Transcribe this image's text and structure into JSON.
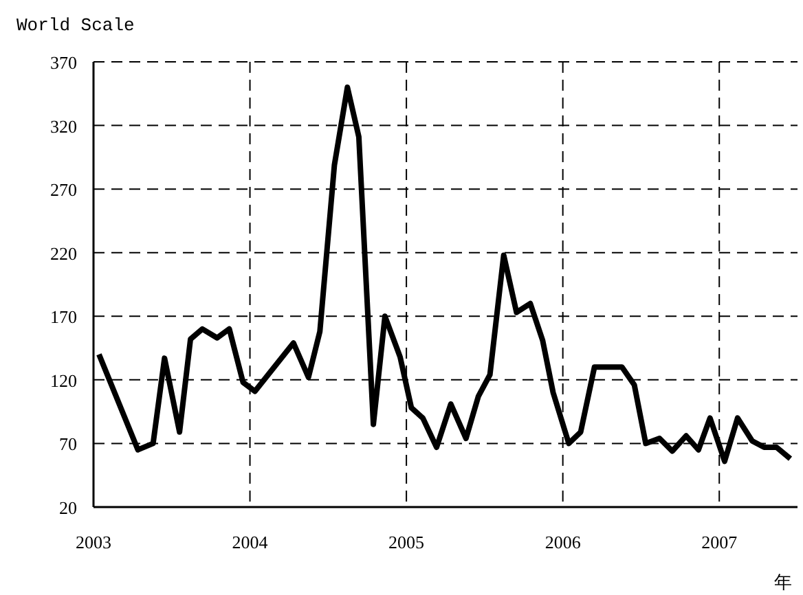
{
  "chart_data": {
    "type": "line",
    "ylabel": "World Scale",
    "xlabel": "年",
    "xlim": [
      2003,
      2007.5
    ],
    "ylim": [
      20,
      370
    ],
    "xticks": [
      2003,
      2004,
      2005,
      2006,
      2007
    ],
    "yticks": [
      20,
      70,
      120,
      170,
      220,
      270,
      320,
      370
    ],
    "grid": true,
    "marker": "none",
    "line_style": "solid",
    "series": [
      {
        "color": "#000000",
        "x": [
          2003.035,
          2003.284,
          2003.381,
          2003.454,
          2003.55,
          2003.62,
          2003.696,
          2003.79,
          2003.868,
          2003.956,
          2004.032,
          2004.278,
          2004.374,
          2004.447,
          2004.54,
          2004.623,
          2004.696,
          2004.789,
          2004.863,
          2004.96,
          2005.032,
          2005.105,
          2005.193,
          2005.284,
          2005.381,
          2005.46,
          2005.534,
          2005.622,
          2005.704,
          2005.792,
          2005.871,
          2005.938,
          2006.038,
          2006.114,
          2006.202,
          2006.378,
          2006.457,
          2006.53,
          2006.618,
          2006.7,
          2006.788,
          2006.867,
          2006.941,
          2007.034,
          2007.117,
          2007.21,
          2007.287,
          2007.366,
          2007.454
        ],
        "values": [
          140,
          65,
          70,
          137,
          79,
          152,
          160,
          153,
          160,
          118,
          111,
          149,
          122,
          158,
          289,
          350,
          311,
          85,
          170,
          138,
          98,
          90,
          67,
          101,
          74,
          107,
          124,
          218,
          173,
          180,
          151,
          110,
          70,
          79,
          130,
          130,
          116,
          70,
          74,
          64,
          76,
          65,
          90,
          56,
          90,
          72,
          67,
          67,
          58
        ]
      }
    ]
  }
}
